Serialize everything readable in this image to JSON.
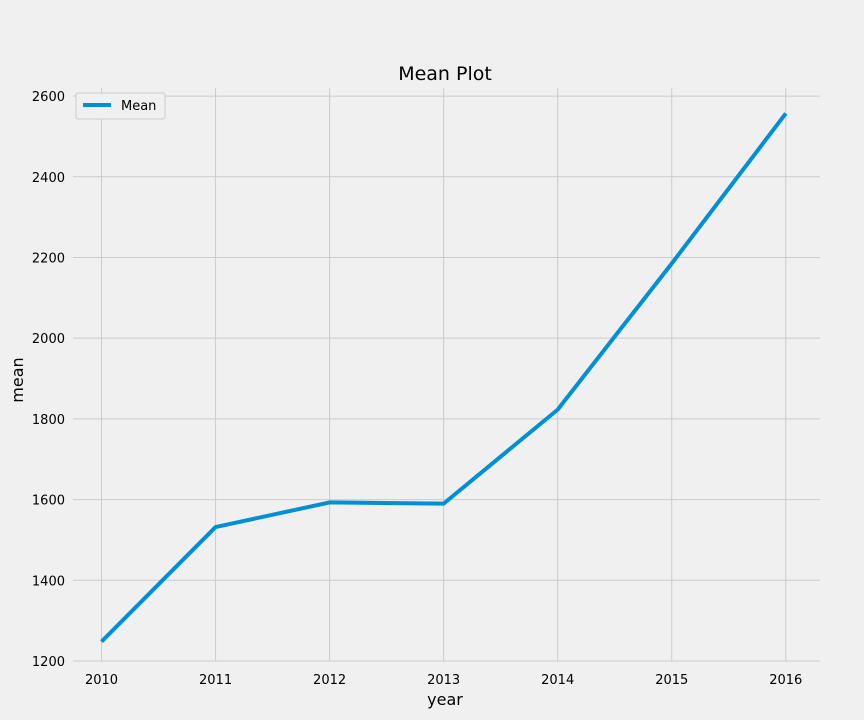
{
  "chart_data": {
    "type": "line",
    "title": "Mean Plot",
    "xlabel": "year",
    "ylabel": "mean",
    "x": [
      2010,
      2011,
      2012,
      2013,
      2014,
      2015,
      2016
    ],
    "series": [
      {
        "name": "Mean",
        "values": [
          1248,
          1532,
          1593,
          1590,
          1823,
          2185,
          2557
        ],
        "color": "#008fd5"
      }
    ],
    "xlim": [
      2009.75,
      2016.3
    ],
    "ylim": [
      1200,
      2620
    ],
    "yticks": [
      1200,
      1400,
      1600,
      1800,
      2000,
      2200,
      2400,
      2600
    ],
    "xticks": [
      2010,
      2011,
      2012,
      2013,
      2014,
      2015,
      2016
    ],
    "grid": true,
    "legend": "top-left",
    "background_color": "#f0f0f0",
    "grid_color": "#cbcbcb"
  }
}
